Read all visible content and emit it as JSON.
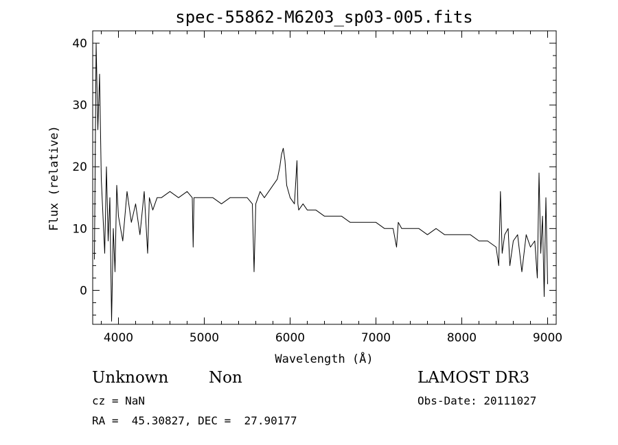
{
  "chart_data": {
    "type": "line",
    "title": "spec-55862-M6203_sp03-005.fits",
    "xlabel": "Wavelength (Å)",
    "ylabel": "Flux (relative)",
    "xlim": [
      3700,
      9100
    ],
    "ylim": [
      -5.5,
      42
    ],
    "x_ticks": [
      4000,
      5000,
      6000,
      7000,
      8000,
      9000
    ],
    "y_ticks": [
      0,
      10,
      20,
      30,
      40
    ],
    "grid": false,
    "series": [
      {
        "color": "#000000",
        "x": [
          3720,
          3740,
          3760,
          3780,
          3800,
          3820,
          3840,
          3860,
          3880,
          3900,
          3920,
          3940,
          3960,
          3980,
          4000,
          4050,
          4100,
          4150,
          4200,
          4250,
          4300,
          4340,
          4360,
          4400,
          4450,
          4500,
          4600,
          4700,
          4800,
          4860,
          4870,
          4880,
          4900,
          5000,
          5100,
          5200,
          5300,
          5400,
          5500,
          5560,
          5580,
          5600,
          5650,
          5700,
          5750,
          5800,
          5850,
          5880,
          5900,
          5920,
          5940,
          5960,
          5980,
          6000,
          6050,
          6080,
          6090,
          6100,
          6150,
          6200,
          6250,
          6300,
          6400,
          6500,
          6600,
          6700,
          6800,
          6900,
          7000,
          7100,
          7200,
          7240,
          7260,
          7300,
          7400,
          7500,
          7600,
          7700,
          7800,
          7900,
          8000,
          8100,
          8200,
          8300,
          8400,
          8430,
          8450,
          8470,
          8500,
          8540,
          8560,
          8600,
          8650,
          8700,
          8750,
          8800,
          8850,
          8880,
          8900,
          8920,
          8940,
          8960,
          8980,
          9000
        ],
        "y": [
          5,
          40,
          26,
          35,
          18,
          12,
          6,
          20,
          8,
          15,
          -5,
          10,
          3,
          17,
          12,
          8,
          16,
          11,
          14,
          9,
          16,
          6,
          15,
          13,
          15,
          15,
          16,
          15,
          16,
          15,
          7,
          15,
          15,
          15,
          15,
          14,
          15,
          15,
          15,
          14,
          3,
          14,
          16,
          15,
          16,
          17,
          18,
          20,
          22,
          23,
          21,
          17,
          16,
          15,
          14,
          21,
          14,
          13,
          14,
          13,
          13,
          13,
          12,
          12,
          12,
          11,
          11,
          11,
          11,
          10,
          10,
          7,
          11,
          10,
          10,
          10,
          9,
          10,
          9,
          9,
          9,
          9,
          8,
          8,
          7,
          4,
          16,
          6,
          9,
          10,
          4,
          8,
          9,
          3,
          9,
          7,
          8,
          2,
          19,
          6,
          12,
          -1,
          15,
          1
        ]
      }
    ]
  },
  "labels": {
    "object_class": "Unknown",
    "object_subclass": "Non",
    "survey": "LAMOST DR3",
    "cz": "cz = NaN",
    "obs_date": "Obs-Date: 20111027",
    "coords": "RA =  45.30827, DEC =  27.90177"
  }
}
